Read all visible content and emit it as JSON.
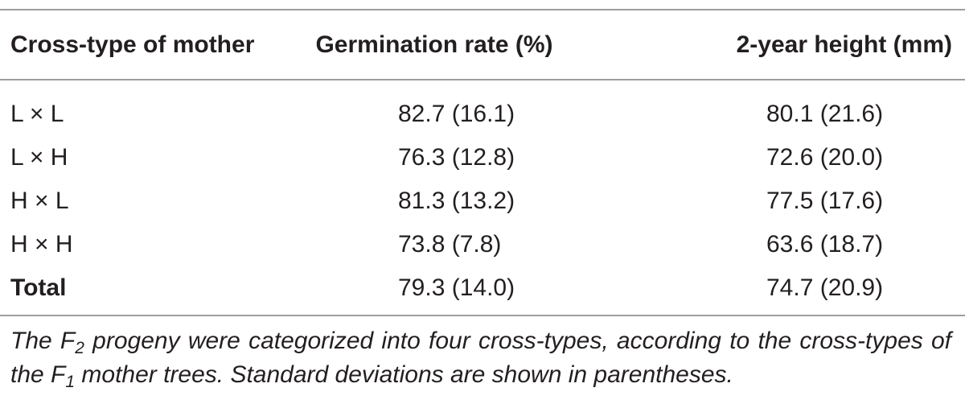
{
  "table": {
    "headers": [
      "Cross-type of mother",
      "Germination rate (%)",
      "2-year height (mm)"
    ],
    "rows": [
      {
        "cross_type": "L × L",
        "germination": "82.7 (16.1)",
        "height": "80.1 (21.6)"
      },
      {
        "cross_type": "L × H",
        "germination": "76.3 (12.8)",
        "height": "72.6 (20.0)"
      },
      {
        "cross_type": "H × L",
        "germination": "81.3 (13.2)",
        "height": "77.5 (17.6)"
      },
      {
        "cross_type": "H × H",
        "germination": "73.8 (7.8)",
        "height": "63.6 (18.7)"
      },
      {
        "cross_type": "Total",
        "germination": "79.3 (14.0)",
        "height": "74.7 (20.9)"
      }
    ]
  },
  "footnote": {
    "part1": "The F",
    "sub1": "2",
    "part2": " progeny were categorized into four cross-types, according to the cross-types of the F",
    "sub2": "1",
    "part3": " mother trees. Standard deviations are shown in parentheses."
  }
}
